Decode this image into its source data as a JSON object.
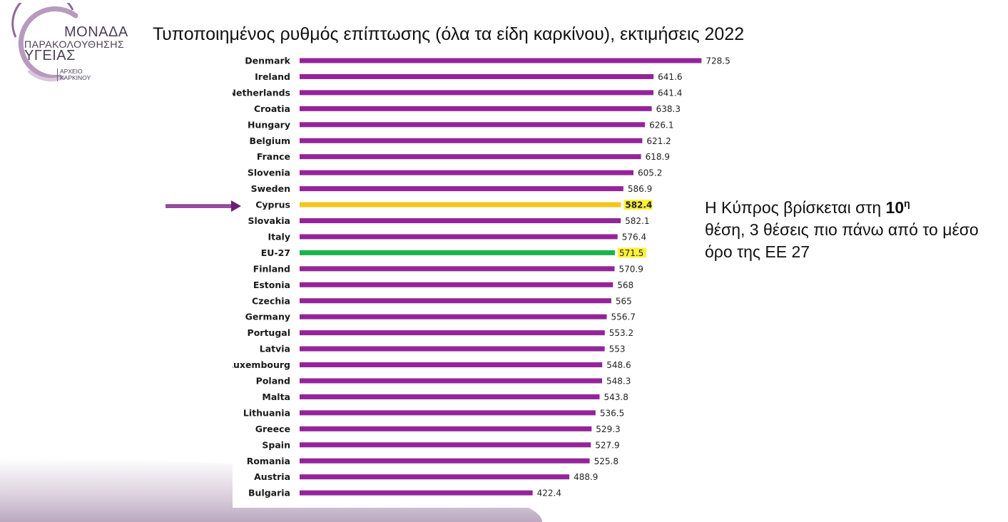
{
  "logo": {
    "line1": "ΜΟΝΑΔΑ",
    "line2": "ΠΑΡΑΚΟΛΟΥΘΗΣΗΣ",
    "line3": "ΥΓΕΙΑΣ",
    "sub1": "ΑΡΧΕΙΟ",
    "sub2": "ΚΑΡΚΙΝΟΥ"
  },
  "callout": {
    "part1": "Η Κύπρος βρίσκεται στη ",
    "rank": "10",
    "rank_sup": "η",
    "part2": "θέση, 3 θέσεις πιο πάνω από το μέσο όρο της ΕΕ 27"
  },
  "colors": {
    "bar": "#94249a",
    "highlight_bar": "#f5c518",
    "eu_bar": "#1db34b",
    "label_highlight": "#fff13a"
  },
  "chart_data": {
    "type": "bar",
    "orientation": "horizontal",
    "title": "Τυποποιημένος ρυθμός επίπτωσης (όλα τα είδη καρκίνου), εκτιμήσεις 2022",
    "xlabel": "",
    "ylabel": "",
    "grid": false,
    "legend": "none",
    "categories": [
      "Denmark",
      "Ireland",
      "Netherlands",
      "Croatia",
      "Hungary",
      "Belgium",
      "France",
      "Slovenia",
      "Sweden",
      "Cyprus",
      "Slovakia",
      "Italy",
      "EU-27",
      "Finland",
      "Estonia",
      "Czechia",
      "Germany",
      "Portugal",
      "Latvia",
      "Luxembourg",
      "Poland",
      "Malta",
      "Lithuania",
      "Greece",
      "Spain",
      "Romania",
      "Austria",
      "Bulgaria"
    ],
    "values": [
      728.5,
      641.6,
      641.4,
      638.3,
      626.1,
      621.2,
      618.9,
      605.2,
      586.9,
      582.4,
      582.1,
      576.4,
      571.5,
      570.9,
      568,
      565,
      556.7,
      553.2,
      553,
      548.6,
      548.3,
      543.8,
      536.5,
      529.3,
      527.9,
      525.8,
      488.9,
      422.4
    ],
    "value_labels": [
      "728.5",
      "641.6",
      "641.4",
      "638.3",
      "626.1",
      "621.2",
      "618.9",
      "605.2",
      "586.9",
      "582.4",
      "582.1",
      "576.4",
      "571.5",
      "570.9",
      "568",
      "565",
      "556.7",
      "553.2",
      "553",
      "548.6",
      "548.3",
      "543.8",
      "536.5",
      "529.3",
      "527.9",
      "525.8",
      "488.9",
      "422.4"
    ],
    "highlighted": {
      "Cyprus": "highlight_bar",
      "EU-27": "eu_bar"
    }
  }
}
